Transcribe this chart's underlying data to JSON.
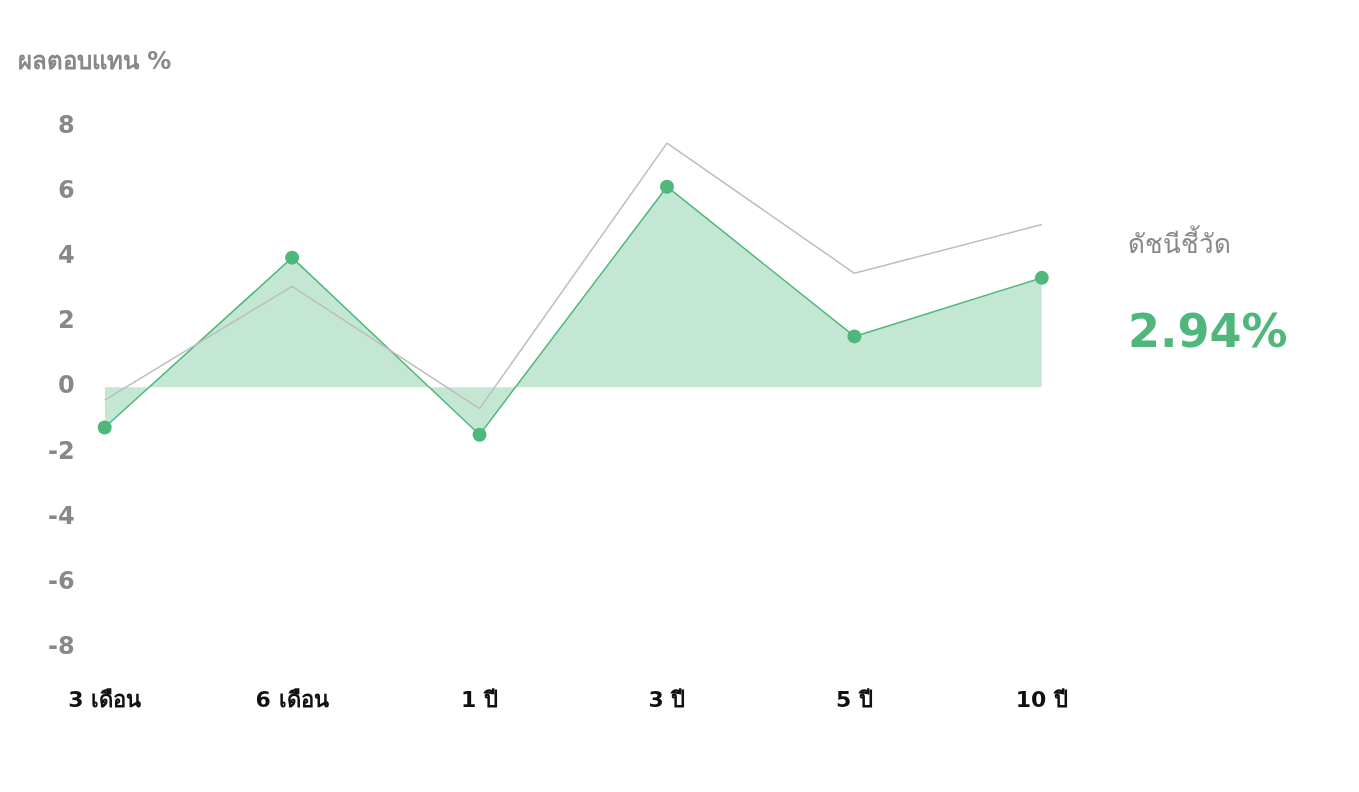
{
  "chart_data": {
    "type": "line",
    "title": "ผลตอบแทน %",
    "categories": [
      "3 เดือน",
      "6 เดือน",
      "1 ปี",
      "3 ปี",
      "5 ปี",
      "10 ปี"
    ],
    "series": [
      {
        "name": "ดัชนีชี้วัด",
        "type": "line",
        "color": "#bdbdbd",
        "marker": "none",
        "values": [
          -0.4,
          3.1,
          -0.66,
          7.5,
          3.5,
          5.0
        ]
      },
      {
        "type": "area",
        "color": "#4fb77c",
        "marker": "circle",
        "values": [
          -1.24,
          3.98,
          -1.46,
          6.16,
          1.56,
          3.36
        ]
      }
    ],
    "ylim": [
      -8,
      8
    ],
    "yticks": [
      -8,
      -6,
      -4,
      -2,
      0,
      2,
      4,
      6,
      8
    ],
    "grid": false,
    "legend": "right",
    "annotations": [
      "2.94%"
    ]
  }
}
